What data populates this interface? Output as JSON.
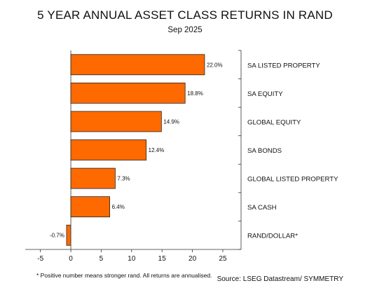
{
  "title": "5 YEAR ANNUAL ASSET CLASS RETURNS IN RAND",
  "subtitle": "Sep 2025",
  "footnote": "* Positive number means stronger rand. All returns are annualised.",
  "source": "Source: LSEG Datastream/ SYMMETRY",
  "chart_data": {
    "type": "bar",
    "orientation": "horizontal",
    "categories": [
      "SA LISTED PROPERTY",
      "SA EQUITY",
      "GLOBAL EQUITY",
      "SA BONDS",
      "GLOBAL LISTED PROPERTY",
      "SA CASH",
      "RAND/DOLLAR*"
    ],
    "values": [
      22.0,
      18.8,
      14.9,
      12.4,
      7.3,
      6.4,
      -0.7
    ],
    "data_labels": [
      "22.0%",
      "18.8%",
      "14.9%",
      "12.4%",
      "7.3%",
      "6.4%",
      "-0.7%"
    ],
    "xlim": [
      -7.5,
      28
    ],
    "xticks": [
      -5,
      0,
      5,
      10,
      15,
      20,
      25
    ],
    "grid": false,
    "colors": {
      "bar": "#FF6A00",
      "bar_edge": "#222222",
      "axis": "#333333"
    }
  }
}
